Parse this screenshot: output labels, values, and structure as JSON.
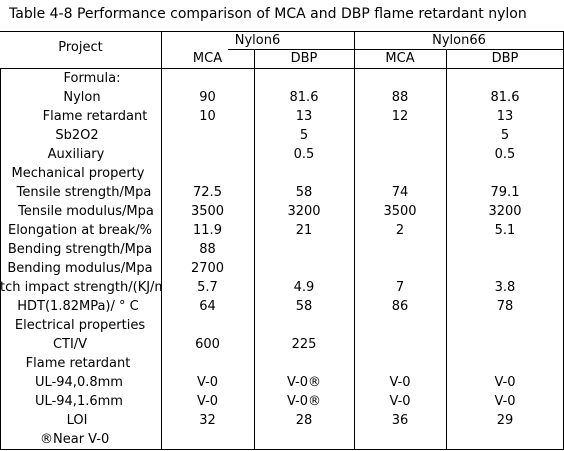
{
  "table": {
    "title": "Table 4-8 Performance comparison of MCA and DBP flame retardant nylon",
    "header": {
      "project": "Project",
      "group1": "Nylon6",
      "group2": "Nylon66",
      "cols": [
        "MCA",
        "DBP",
        "MCA",
        "DBP"
      ]
    },
    "rows": [
      {
        "label": "Formula:",
        "values": [
          "",
          "",
          "",
          ""
        ]
      },
      {
        "label": "Nylon",
        "values": [
          "90",
          "81.6",
          "88",
          "81.6"
        ]
      },
      {
        "label": "Flame retardant",
        "values": [
          "10",
          "13",
          "12",
          "13"
        ]
      },
      {
        "label": "Sb2O2",
        "values": [
          "",
          "5",
          "",
          "5"
        ]
      },
      {
        "label": "Auxiliary",
        "values": [
          "",
          "0.5",
          "",
          "0.5"
        ]
      },
      {
        "label": "Mechanical property",
        "values": [
          "",
          "",
          "",
          ""
        ]
      },
      {
        "label": "Tensile strength/Mpa",
        "values": [
          "72.5",
          "58",
          "74",
          "79.1"
        ]
      },
      {
        "label": "Tensile modulus/Mpa",
        "values": [
          "3500",
          "3200",
          "3500",
          "3200"
        ]
      },
      {
        "label": "Elongation at break/%",
        "values": [
          "11.9",
          "21",
          "2",
          "5.1"
        ]
      },
      {
        "label": "Bending strength/Mpa",
        "values": [
          "88",
          "",
          "",
          ""
        ]
      },
      {
        "label": "Bending modulus/Mpa",
        "values": [
          "2700",
          "",
          "",
          ""
        ]
      },
      {
        "label": "tch impact strength/(KJ/m",
        "values": [
          "5.7",
          "4.9",
          "7",
          "3.8"
        ]
      },
      {
        "label": "HDT(1.82MPa)/ ° C",
        "values": [
          "64",
          "58",
          "86",
          "78"
        ]
      },
      {
        "label": "Electrical properties",
        "values": [
          "",
          "",
          "",
          ""
        ]
      },
      {
        "label": "CTI/V",
        "values": [
          "600",
          "225",
          "",
          ""
        ]
      },
      {
        "label": "Flame retardant",
        "values": [
          "",
          "",
          "",
          ""
        ]
      },
      {
        "label": "UL-94,0.8mm",
        "values": [
          "V-0",
          "V-0®",
          "V-0",
          "V-0"
        ]
      },
      {
        "label": "UL-94,1.6mm",
        "values": [
          "V-0",
          "V-0®",
          "V-0",
          "V-0"
        ]
      },
      {
        "label": "LOI",
        "values": [
          "32",
          "28",
          "36",
          "29"
        ]
      },
      {
        "label": "®Near V-0",
        "values": [
          "",
          "",
          "",
          ""
        ]
      }
    ]
  }
}
